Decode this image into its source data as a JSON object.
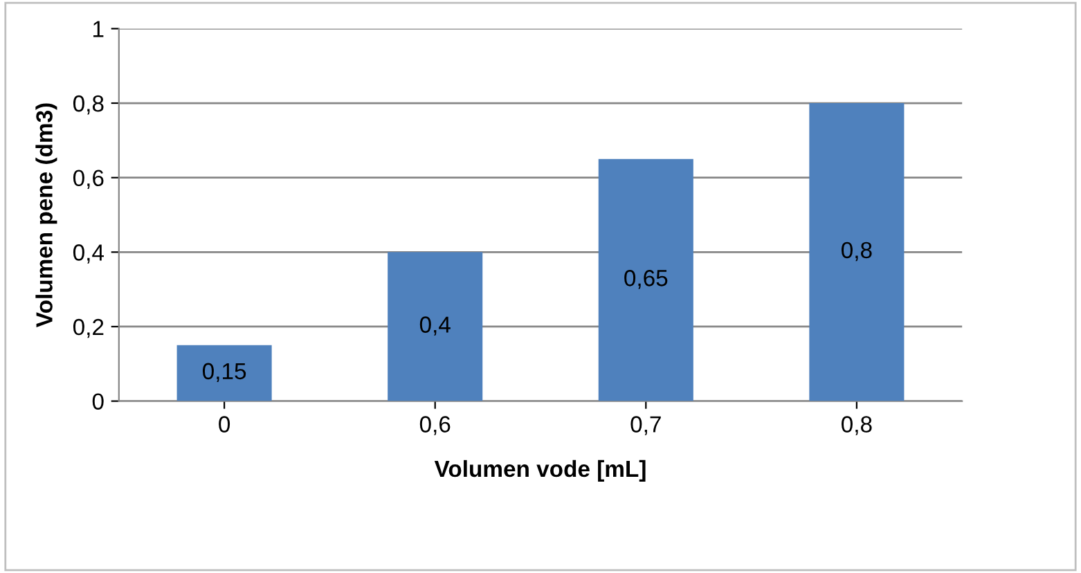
{
  "chart_data": {
    "type": "bar",
    "xlabel": "Volumen vode [mL]",
    "ylabel": "Volumen pene (dm3)",
    "categories": [
      "0",
      "0,6",
      "0,7",
      "0,8"
    ],
    "values": [
      0.15,
      0.4,
      0.65,
      0.8
    ],
    "value_labels": [
      "0,15",
      "0,4",
      "0,65",
      "0,8"
    ],
    "color": "#4f81bd",
    "ylim": [
      0,
      1
    ],
    "yticks": [
      {
        "value": 0,
        "label": "0"
      },
      {
        "value": 0.2,
        "label": "0,2"
      },
      {
        "value": 0.4,
        "label": "0,4"
      },
      {
        "value": 0.6,
        "label": "0,6"
      },
      {
        "value": 0.8,
        "label": "0,8"
      },
      {
        "value": 1,
        "label": "1"
      }
    ],
    "grid": "y",
    "legend": false
  }
}
